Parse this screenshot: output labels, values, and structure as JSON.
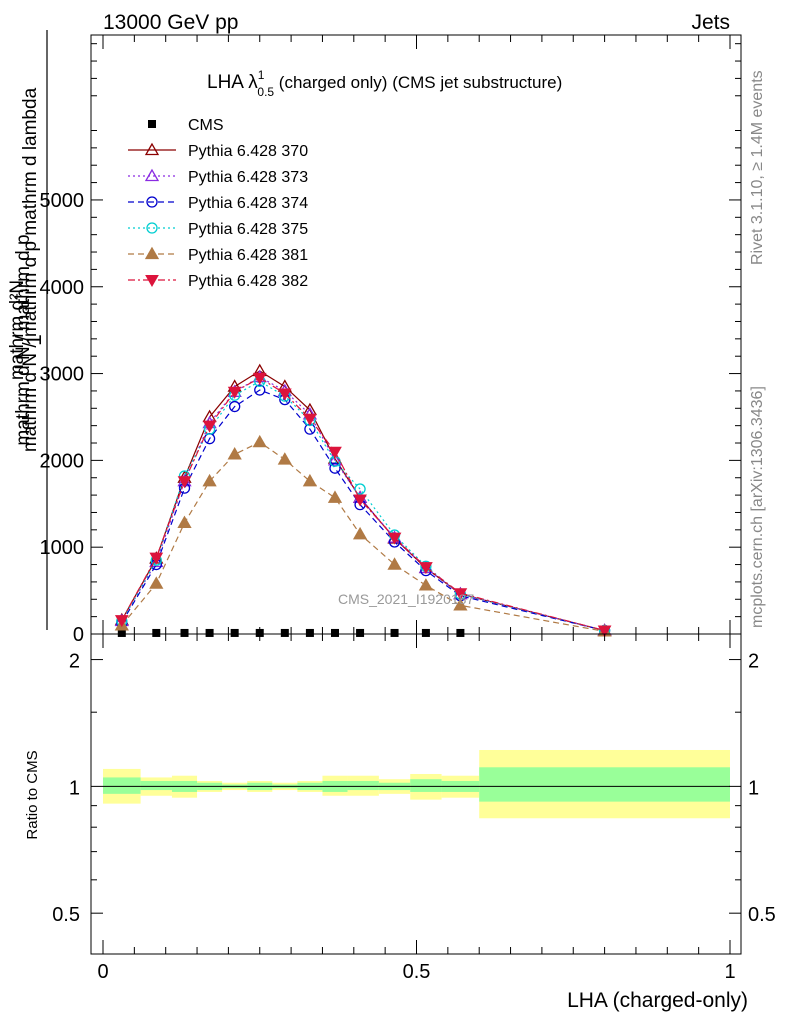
{
  "header": {
    "left": "13000 GeV pp",
    "right": "Jets"
  },
  "title": {
    "main": "LHA λ",
    "sup": "1",
    "sub": "0.5",
    "rest": " (charged only) (CMS jet substructure)"
  },
  "side_labels": {
    "rivet": "Rivet 3.1.10, ≥ 1.4M events",
    "mcplots": "mcplots.cern.ch [arXiv:1306.3436]"
  },
  "watermark": "CMS_2021_I1920187",
  "colors": {
    "cms": "#000000",
    "p370": "#8b0000",
    "p373": "#8a2be2",
    "p374": "#0000cd",
    "p375": "#00ced1",
    "p381": "#b07a45",
    "p382": "#dc143c",
    "band_inner": "#99ff99",
    "band_outer": "#ffff99"
  },
  "chart_data": [
    {
      "type": "line",
      "title": "LHA λ^1_0.5 (charged only) (CMS jet substructure)",
      "xlabel": "",
      "ylabel": "1 / (mathrm d N / mathrm d p_T) · mathrm d^2N / (mathrm d p_T mathrm d lambda)",
      "xlim": [
        0,
        1
      ],
      "ylim": [
        0,
        6900
      ],
      "yticks": [
        0,
        1000,
        2000,
        3000,
        4000,
        5000
      ],
      "ytick_labels": [
        "0",
        "1000",
        "2000",
        "3000",
        "4000",
        "5000"
      ],
      "legend_position": "top-left",
      "x": [
        0.03,
        0.085,
        0.13,
        0.17,
        0.21,
        0.25,
        0.29,
        0.33,
        0.37,
        0.41,
        0.465,
        0.515,
        0.57,
        0.8
      ],
      "series": [
        {
          "name": "CMS",
          "marker": "square",
          "color_key": "cms",
          "values": [
            0.5,
            0.5,
            0.5,
            0.5,
            0.5,
            0.5,
            0.5,
            0.5,
            0.5,
            0.5,
            0.5,
            0.5,
            0.5,
            null
          ]
        },
        {
          "name": "Pythia 6.428 370",
          "marker": "triangle-up-open",
          "dash": "solid",
          "color_key": "p370",
          "values": [
            160,
            870,
            1800,
            2500,
            2850,
            3030,
            2850,
            2580,
            2020,
            1570,
            1100,
            760,
            460,
            40
          ]
        },
        {
          "name": "Pythia 6.428 373",
          "marker": "triangle-up-open",
          "dash": "dotted",
          "color_key": "p373",
          "values": [
            150,
            830,
            1760,
            2430,
            2790,
            2960,
            2800,
            2530,
            2000,
            1570,
            1110,
            760,
            460,
            40
          ]
        },
        {
          "name": "Pythia 6.428 374",
          "marker": "circle-open",
          "dash": "dashed",
          "color_key": "p374",
          "values": [
            130,
            800,
            1680,
            2250,
            2620,
            2810,
            2700,
            2360,
            1910,
            1490,
            1060,
            730,
            440,
            40
          ]
        },
        {
          "name": "Pythia 6.428 375",
          "marker": "circle-open",
          "dash": "dotted",
          "color_key": "p375",
          "values": [
            150,
            850,
            1820,
            2360,
            2750,
            2910,
            2740,
            2460,
            1990,
            1670,
            1140,
            780,
            460,
            40
          ]
        },
        {
          "name": "Pythia 6.428 381",
          "marker": "triangle-up-filled",
          "dash": "dashed",
          "color_key": "p381",
          "values": [
            100,
            580,
            1280,
            1760,
            2070,
            2210,
            2010,
            1760,
            1570,
            1150,
            800,
            560,
            330,
            30
          ]
        },
        {
          "name": "Pythia 6.428 382",
          "marker": "triangle-down-filled",
          "dash": "dashdot",
          "color_key": "p382",
          "values": [
            160,
            880,
            1760,
            2400,
            2790,
            2950,
            2770,
            2480,
            2100,
            1550,
            1110,
            770,
            470,
            40
          ]
        }
      ]
    },
    {
      "type": "area",
      "title": "",
      "xlabel": "LHA (charged-only)",
      "ylabel": "Ratio to CMS",
      "xlim": [
        0,
        1
      ],
      "ylim": [
        0.4,
        2.3
      ],
      "yscale": "log",
      "yticks": [
        0.5,
        1,
        2
      ],
      "ytick_labels": [
        "0.5",
        "1",
        "2"
      ],
      "xticks": [
        0,
        0.5,
        1
      ],
      "xtick_labels": [
        "0",
        "0.5",
        "1"
      ],
      "bins": [
        {
          "x0": 0.0,
          "x1": 0.06,
          "inner": [
            0.96,
            1.05
          ],
          "outer": [
            0.91,
            1.1
          ]
        },
        {
          "x0": 0.06,
          "x1": 0.11,
          "inner": [
            0.98,
            1.03
          ],
          "outer": [
            0.95,
            1.05
          ]
        },
        {
          "x0": 0.11,
          "x1": 0.15,
          "inner": [
            0.97,
            1.03
          ],
          "outer": [
            0.94,
            1.06
          ]
        },
        {
          "x0": 0.15,
          "x1": 0.19,
          "inner": [
            0.98,
            1.02
          ],
          "outer": [
            0.97,
            1.03
          ]
        },
        {
          "x0": 0.19,
          "x1": 0.23,
          "inner": [
            0.99,
            1.01
          ],
          "outer": [
            0.98,
            1.02
          ]
        },
        {
          "x0": 0.23,
          "x1": 0.27,
          "inner": [
            0.98,
            1.02
          ],
          "outer": [
            0.97,
            1.03
          ]
        },
        {
          "x0": 0.27,
          "x1": 0.31,
          "inner": [
            0.99,
            1.01
          ],
          "outer": [
            0.98,
            1.02
          ]
        },
        {
          "x0": 0.31,
          "x1": 0.35,
          "inner": [
            0.98,
            1.02
          ],
          "outer": [
            0.97,
            1.03
          ]
        },
        {
          "x0": 0.35,
          "x1": 0.39,
          "inner": [
            0.97,
            1.03
          ],
          "outer": [
            0.95,
            1.06
          ]
        },
        {
          "x0": 0.39,
          "x1": 0.44,
          "inner": [
            0.98,
            1.03
          ],
          "outer": [
            0.95,
            1.06
          ]
        },
        {
          "x0": 0.44,
          "x1": 0.49,
          "inner": [
            0.98,
            1.02
          ],
          "outer": [
            0.96,
            1.04
          ]
        },
        {
          "x0": 0.49,
          "x1": 0.54,
          "inner": [
            0.97,
            1.04
          ],
          "outer": [
            0.93,
            1.07
          ]
        },
        {
          "x0": 0.54,
          "x1": 0.6,
          "inner": [
            0.97,
            1.03
          ],
          "outer": [
            0.94,
            1.06
          ]
        },
        {
          "x0": 0.6,
          "x1": 1.0,
          "inner": [
            0.92,
            1.11
          ],
          "outer": [
            0.84,
            1.22
          ]
        }
      ],
      "reference_line": 1
    }
  ]
}
